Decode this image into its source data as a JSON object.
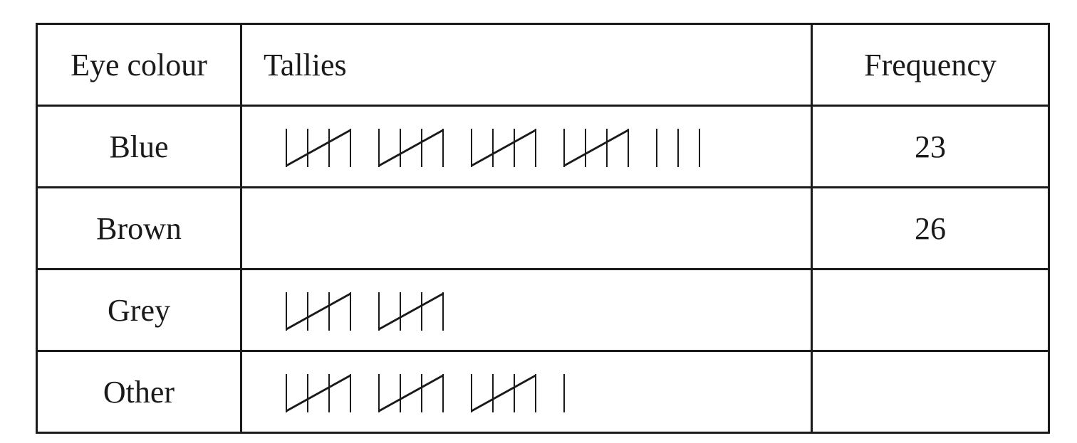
{
  "headers": {
    "eye_colour": "Eye colour",
    "tallies": "Tallies",
    "frequency": "Frequency"
  },
  "rows": [
    {
      "colour": "Blue",
      "tally_count": 23,
      "frequency": "23"
    },
    {
      "colour": "Brown",
      "tally_count": 0,
      "frequency": "26"
    },
    {
      "colour": "Grey",
      "tally_count": 10,
      "frequency": ""
    },
    {
      "colour": "Other",
      "tally_count": 16,
      "frequency": ""
    }
  ]
}
